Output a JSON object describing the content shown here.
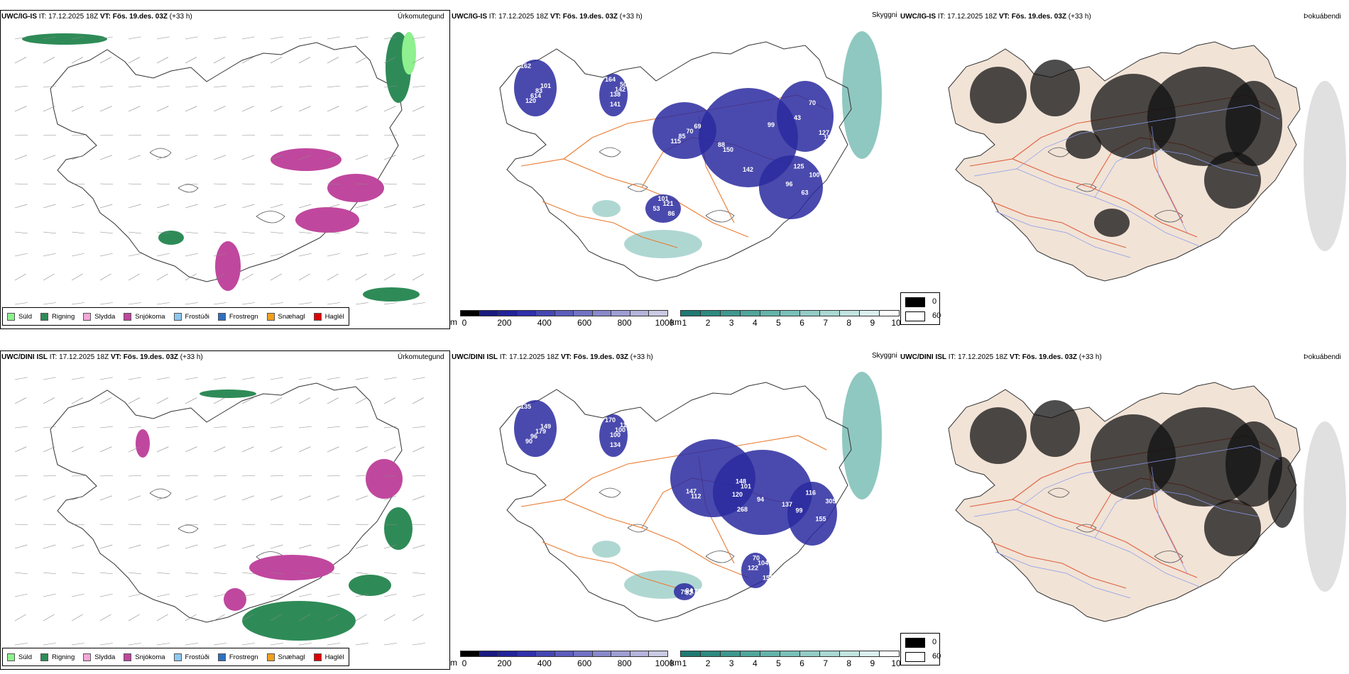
{
  "rows": [
    {
      "header": {
        "model": "UWC/IG-IS",
        "it_label": "IT:",
        "it_value": "17.12.2025 18Z",
        "vt_label": "VT:",
        "vt_value": "Fös. 19.des. 03Z",
        "lead": "(+33 h)"
      }
    },
    {
      "header": {
        "model": "UWC/DINI ISL",
        "it_label": "IT:",
        "it_value": "17.12.2025 18Z",
        "vt_label": "VT:",
        "vt_value": "Fös. 19.des. 03Z",
        "lead": "(+33 h)"
      }
    }
  ],
  "panels": {
    "precip_title": "Úrkomutegund",
    "ceiling_title": "Skyggni",
    "fog_title": "Þokuábendi"
  },
  "precip_legend": [
    {
      "label": "Súld",
      "color": "#8ef08e"
    },
    {
      "label": "Rigning",
      "color": "#2e8b57"
    },
    {
      "label": "Slydda",
      "color": "#f4a8d8"
    },
    {
      "label": "Snjókoma",
      "color": "#c0479e"
    },
    {
      "label": "Frostúði",
      "color": "#8ec8f0"
    },
    {
      "label": "Frostregn",
      "color": "#2f6fc0"
    },
    {
      "label": "Snæhagl",
      "color": "#f0a020"
    },
    {
      "label": "Haglél",
      "color": "#e00000"
    }
  ],
  "ceiling_bar": {
    "unit": "m",
    "ticks": [
      "0",
      "200",
      "400",
      "600",
      "800",
      "1000"
    ],
    "colors": [
      "#000000",
      "#1a1a80",
      "#22229a",
      "#3030aa",
      "#4646b4",
      "#5c5cbc",
      "#7272c4",
      "#8888cc",
      "#9e9ed4",
      "#b4b4dc",
      "#cacae4"
    ]
  },
  "visibility_bar": {
    "unit": "km",
    "ticks": [
      "1",
      "2",
      "3",
      "4",
      "5",
      "6",
      "7",
      "8",
      "9",
      "10"
    ],
    "colors": [
      "#1f7a72",
      "#2e8a80",
      "#3e988e",
      "#50a69c",
      "#64b3aa",
      "#7ac0b8",
      "#92ccc6",
      "#aad8d3",
      "#c2e4e0",
      "#daf0ee",
      "#ffffff"
    ]
  },
  "fog_legend": [
    {
      "value": "0",
      "color": "#000000"
    },
    {
      "value": "60",
      "color": "#ffffff"
    }
  ],
  "ceiling_labels": [
    [
      "162",
      "138",
      "115",
      "150",
      "96",
      "101",
      "110",
      "120",
      "142",
      "85",
      "99",
      "125",
      "86",
      "70",
      "614",
      "506",
      "70",
      "142",
      "63",
      "53",
      "43",
      "83",
      "164",
      "69",
      "88",
      "100",
      "121",
      "127",
      "101",
      "141"
    ],
    [
      "135",
      "100",
      "148",
      "268",
      "99",
      "104",
      "94",
      "90",
      "100",
      "101",
      "137",
      "116",
      "153",
      "170",
      "96",
      "118",
      "147",
      "94",
      "155",
      "122",
      "79",
      "179",
      "170",
      "112",
      "120",
      "305",
      "70",
      "92",
      "149",
      "134"
    ]
  ],
  "colors": {
    "coast": "#333333",
    "road": "#e87a30",
    "fog_land": "#f1e3d6",
    "fog_road": "#e06040",
    "river": "#8899ee",
    "rain": "#2e8b57",
    "snow": "#c0479e",
    "drizzle": "#8ef08e",
    "ceiling_cloud": "#2a2aa0",
    "vis_cloud": "#5fb0a6"
  }
}
